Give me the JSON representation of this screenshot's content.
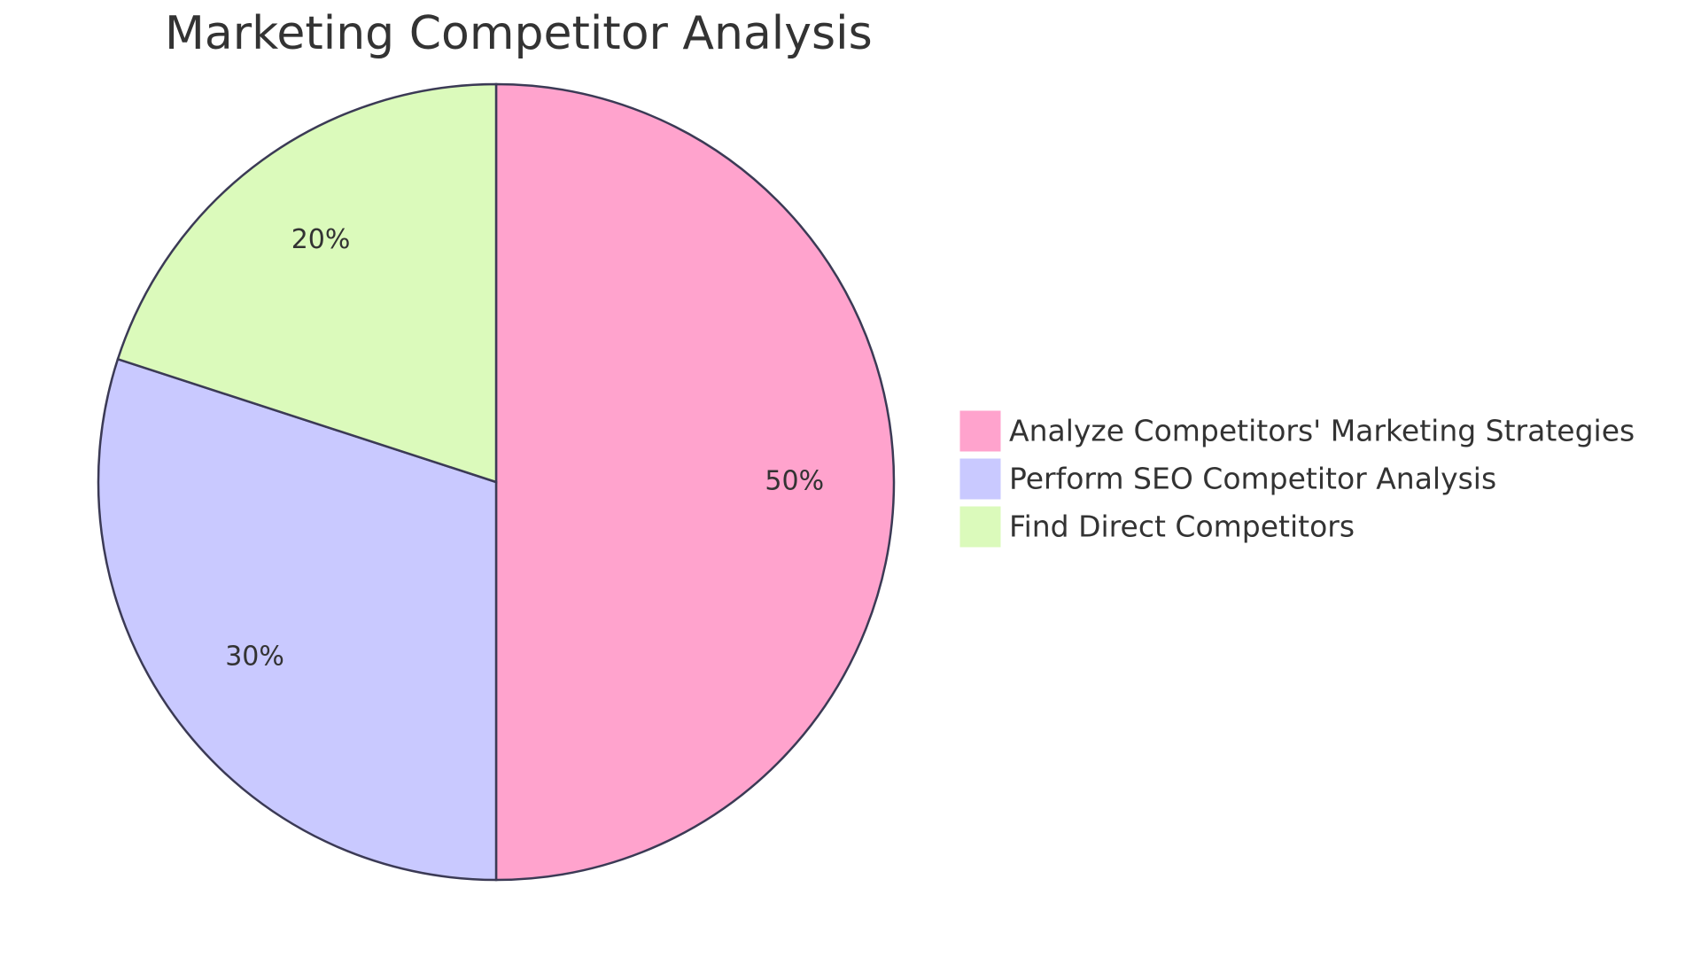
{
  "chart_data": {
    "type": "pie",
    "title": "Marketing Competitor Analysis",
    "categories": [
      "Analyze Competitors' Marketing Strategies",
      "Perform SEO Competitor Analysis",
      "Find Direct Competitors"
    ],
    "values": [
      50,
      30,
      20
    ],
    "value_labels": [
      "50%",
      "30%",
      "20%"
    ],
    "colors": [
      "#ffa3cd",
      "#c9c9ff",
      "#dbfabb"
    ],
    "legend": "right"
  }
}
